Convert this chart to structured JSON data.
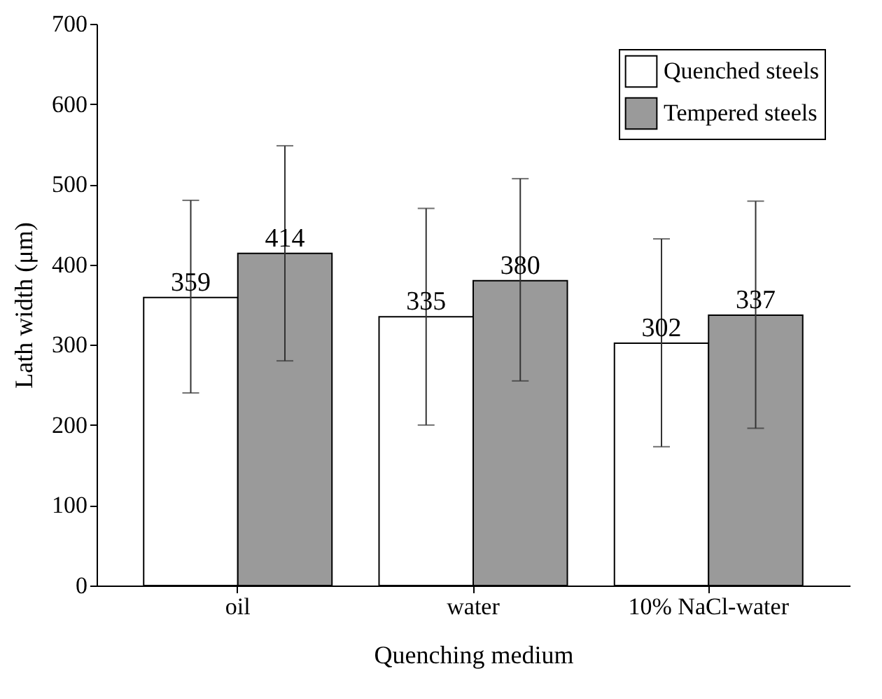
{
  "chart_data": {
    "type": "bar",
    "xlabel": "Quenching medium",
    "ylabel": "Lath width (μm)",
    "categories": [
      "oil",
      "water",
      "10% NaCl-water"
    ],
    "series": [
      {
        "name": "Quenched steels",
        "color": "#ffffff",
        "values": [
          359,
          335,
          302
        ],
        "errors": [
          [
            240,
            480
          ],
          [
            200,
            470
          ],
          [
            173,
            432
          ]
        ]
      },
      {
        "name": "Tempered steels",
        "color": "#9a9a9a",
        "values": [
          414,
          380,
          337
        ],
        "errors": [
          [
            280,
            548
          ],
          [
            255,
            507
          ],
          [
            196,
            479
          ]
        ]
      }
    ],
    "ylim": [
      0,
      700
    ],
    "yticks": [
      0,
      100,
      200,
      300,
      400,
      500,
      600,
      700
    ],
    "data_labels": true,
    "legend": "top right",
    "grid": false
  }
}
